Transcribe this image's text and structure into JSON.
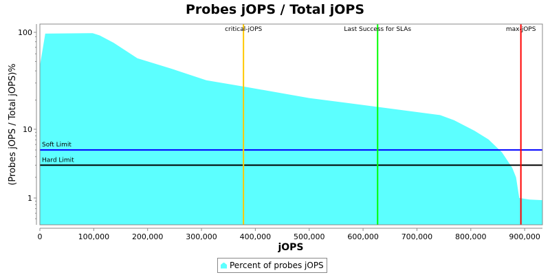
{
  "chart_data": {
    "type": "area",
    "title": "Probes jOPS / Total jOPS",
    "xlabel": "jOPS",
    "ylabel": "(Probes jOPS / Total jOPS)%",
    "y_scale": "log",
    "xlim": [
      0,
      933000
    ],
    "ylim": [
      0.41,
      122
    ],
    "x_ticks": [
      "0",
      "100,000",
      "200,000",
      "300,000",
      "400,000",
      "500,000",
      "600,000",
      "700,000",
      "800,000",
      "900,000"
    ],
    "y_ticks": [
      "1",
      "10",
      "100"
    ],
    "grid": false,
    "legend_position": "bottom",
    "series": [
      {
        "name": "Percent of probes jOPS",
        "color": "#5cffff",
        "x": [
          0,
          10000,
          98000,
          111000,
          137000,
          181000,
          245000,
          309000,
          378000,
          500000,
          627000,
          743000,
          769000,
          807000,
          833000,
          858000,
          877000,
          884000,
          890000,
          909000,
          933000
        ],
        "y": [
          45,
          97,
          98,
          93,
          78,
          54,
          42,
          32,
          27.6,
          21,
          17,
          14,
          12.4,
          9.5,
          7.1,
          4.6,
          2.75,
          2.0,
          1.0,
          0.95,
          0.93
        ]
      }
    ],
    "vertical_markers": [
      {
        "label": "critical-jOPS",
        "x": 378000,
        "color": "#ffc800"
      },
      {
        "label": "Last Success for SLAs",
        "x": 627000,
        "color": "#00ff00"
      },
      {
        "label": "max-jOPS",
        "x": 893000,
        "color": "#ff0000"
      }
    ],
    "horizontal_markers": [
      {
        "label": "Soft Limit",
        "y": 5,
        "color": "#0000ff"
      },
      {
        "label": "Hard Limit",
        "y": 3,
        "color": "#000000"
      }
    ]
  }
}
